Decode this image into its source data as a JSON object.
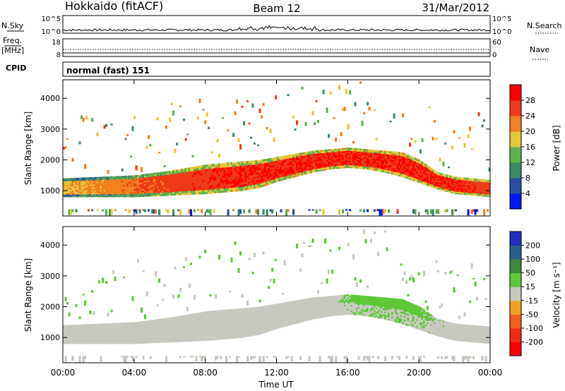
{
  "header": {
    "station": "Hokkaido (fitACF)",
    "beam": "Beam 12",
    "date": "31/Mar/2012"
  },
  "aux": {
    "nsky_label": "N.Sky",
    "nsearch_label": "N.Search",
    "freq_label_1": "Freq.",
    "freq_label_2": "[MHz]",
    "nave_label": "Nave",
    "cpid_label": "CPID",
    "cpid_value": "normal (fast) 151",
    "noise_ticks": [
      "10^5",
      "10^0"
    ],
    "freq_ticks": [
      "18",
      "8"
    ],
    "nave_ticks": [
      "60",
      "0"
    ]
  },
  "x_axis": {
    "label": "Time UT",
    "ticks": [
      "00:00",
      "04:00",
      "08:00",
      "12:00",
      "16:00",
      "20:00",
      "00:00"
    ]
  },
  "y_axis": {
    "label": "Slant Range [km]",
    "ticks": [
      "1000",
      "2000",
      "3000",
      "4000"
    ]
  },
  "power_colorbar": {
    "label": "Power [dB]",
    "ticks": [
      "4",
      "8",
      "12",
      "16",
      "20",
      "24",
      "28"
    ],
    "colors": [
      "#0018f0",
      "#2a4fa0",
      "#3f8a6a",
      "#5fb050",
      "#e6c63a",
      "#f08020",
      "#ee3a18",
      "#ff0000"
    ]
  },
  "velocity_colorbar": {
    "label": "Velocity [m s⁻¹]",
    "ticks": [
      "200",
      "100",
      "50",
      "15",
      "-15",
      "-50",
      "-100",
      "-200"
    ],
    "colors": [
      "#2030c0",
      "#2a5f8a",
      "#3d8a3d",
      "#5ec83a",
      "#c8c8c0",
      "#f0a020",
      "#f06018",
      "#ee2a10",
      "#ff0000"
    ]
  },
  "chart_data": [
    {
      "type": "heatmap",
      "title": "",
      "xlabel": "Time UT",
      "ylabel": "Slant Range [km]",
      "xlim": [
        0,
        24
      ],
      "ylim": [
        180,
        4600
      ],
      "colorbar_label": "Power [dB]",
      "colorbar_range": [
        2,
        30
      ],
      "series": [
        {
          "x": [
            0,
            2,
            4,
            6,
            8,
            9,
            10,
            11,
            12,
            13,
            14,
            15,
            16,
            17,
            18,
            19,
            20,
            21,
            22,
            23,
            24
          ],
          "y_low": [
            800,
            800,
            800,
            850,
            900,
            950,
            1000,
            1100,
            1300,
            1450,
            1600,
            1700,
            1750,
            1700,
            1600,
            1450,
            1250,
            1050,
            900,
            850,
            800
          ],
          "y_high": [
            1400,
            1450,
            1500,
            1650,
            1850,
            1900,
            1950,
            2000,
            2100,
            2200,
            2300,
            2350,
            2400,
            2350,
            2300,
            2250,
            2000,
            1600,
            1450,
            1400,
            1350
          ],
          "power_db": [
            20,
            22,
            24,
            26,
            27,
            28,
            28,
            28,
            28,
            28,
            28,
            28,
            28,
            28,
            28,
            28,
            28,
            28,
            28,
            27,
            26
          ]
        }
      ]
    },
    {
      "type": "heatmap",
      "title": "",
      "xlabel": "Time UT",
      "ylabel": "Slant Range [km]",
      "xlim": [
        0,
        24
      ],
      "ylim": [
        180,
        4600
      ],
      "colorbar_label": "Velocity [m s⁻¹]",
      "colorbar_range": [
        -200,
        200
      ],
      "series": [
        {
          "x": [
            0,
            2,
            4,
            6,
            8,
            9,
            10,
            11,
            12,
            13,
            14,
            15,
            16,
            17,
            18,
            19,
            20,
            21,
            22,
            23,
            24
          ],
          "y_low": [
            800,
            800,
            800,
            850,
            900,
            950,
            1000,
            1100,
            1300,
            1450,
            1600,
            1700,
            1750,
            1700,
            1600,
            1450,
            1250,
            1050,
            900,
            850,
            800
          ],
          "y_high": [
            1400,
            1450,
            1500,
            1650,
            1850,
            1900,
            1950,
            2000,
            2100,
            2200,
            2300,
            2350,
            2400,
            2350,
            2300,
            2250,
            2000,
            1600,
            1450,
            1400,
            1350
          ],
          "velocity": [
            0,
            0,
            0,
            0,
            0,
            0,
            0,
            0,
            0,
            0,
            0,
            0,
            20,
            30,
            35,
            30,
            25,
            10,
            0,
            0,
            0
          ]
        }
      ]
    }
  ]
}
